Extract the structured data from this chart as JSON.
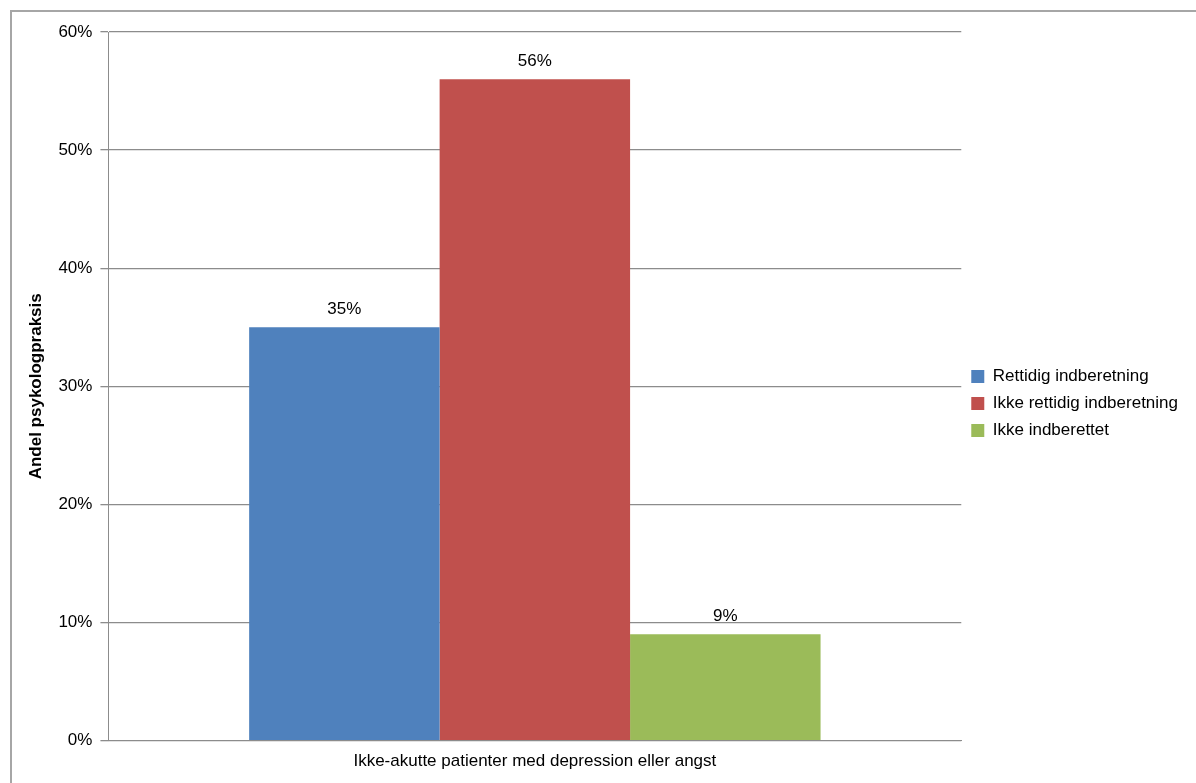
{
  "chart_data": {
    "type": "bar",
    "ylabel": "Andel psykologpraksis",
    "categories": [
      "Ikke-akutte patienter med depression eller angst"
    ],
    "series": [
      {
        "name": "Rettidig indberetning",
        "color": "#4f81bd",
        "values": [
          35
        ],
        "value_labels": [
          "35%"
        ]
      },
      {
        "name": "Ikke rettidig indberetning",
        "color": "#c0504d",
        "values": [
          56
        ],
        "value_labels": [
          "56%"
        ]
      },
      {
        "name": "Ikke indberettet",
        "color": "#9bbb59",
        "values": [
          9
        ],
        "value_labels": [
          "9%"
        ]
      }
    ],
    "ylim": [
      0,
      60
    ],
    "yticks": [
      {
        "value": 0,
        "label": "0%"
      },
      {
        "value": 10,
        "label": "10%"
      },
      {
        "value": 20,
        "label": "20%"
      },
      {
        "value": 30,
        "label": "30%"
      },
      {
        "value": 40,
        "label": "40%"
      },
      {
        "value": 50,
        "label": "50%"
      },
      {
        "value": 60,
        "label": "60%"
      }
    ],
    "grid": "y",
    "legend": "right"
  }
}
